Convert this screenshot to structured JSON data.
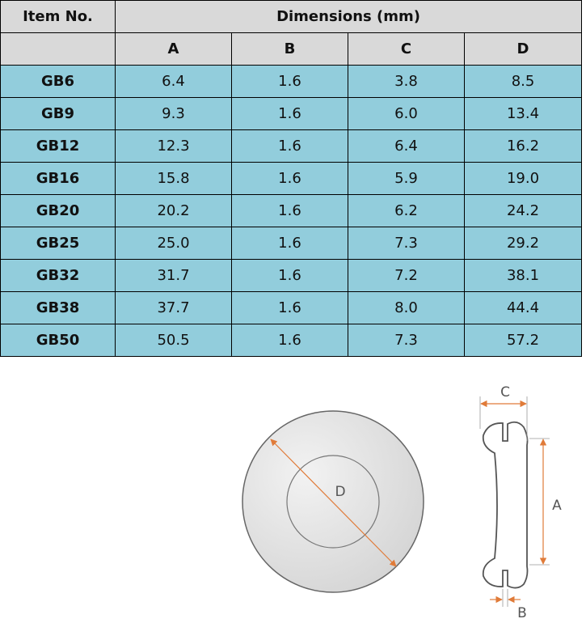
{
  "table": {
    "header": {
      "item": "Item No.",
      "group": "Dimensions (mm)",
      "columns": [
        "A",
        "B",
        "C",
        "D"
      ]
    },
    "rows": [
      [
        "GB6",
        "6.4",
        "1.6",
        "3.8",
        "8.5"
      ],
      [
        "GB9",
        "9.3",
        "1.6",
        "6.0",
        "13.4"
      ],
      [
        "GB12",
        "12.3",
        "1.6",
        "6.4",
        "16.2"
      ],
      [
        "GB16",
        "15.8",
        "1.6",
        "5.9",
        "19.0"
      ],
      [
        "GB20",
        "20.2",
        "1.6",
        "6.2",
        "24.2"
      ],
      [
        "GB25",
        "25.0",
        "1.6",
        "7.3",
        "29.2"
      ],
      [
        "GB32",
        "31.7",
        "1.6",
        "7.2",
        "38.1"
      ],
      [
        "GB38",
        "37.7",
        "1.6",
        "8.0",
        "44.4"
      ],
      [
        "GB50",
        "50.5",
        "1.6",
        "7.3",
        "57.2"
      ]
    ]
  },
  "diagram": {
    "front_label": "D",
    "side_labels": [
      "C",
      "A",
      "B"
    ]
  }
}
